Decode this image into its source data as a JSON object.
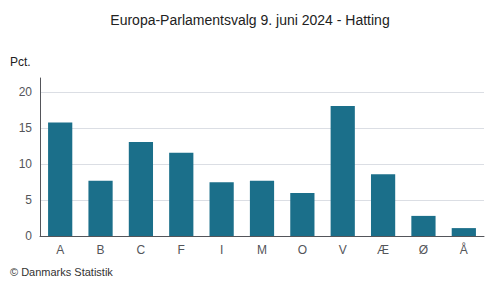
{
  "chart_data": {
    "type": "bar",
    "title": "Europa-Parlamentsvalg 9. juni 2024 - Hatting",
    "ylabel": "Pct.",
    "footer": "© Danmarks Statistik",
    "categories": [
      "A",
      "B",
      "C",
      "F",
      "I",
      "M",
      "O",
      "V",
      "Æ",
      "Ø",
      "Å"
    ],
    "values": [
      15.8,
      7.7,
      13.1,
      11.6,
      7.5,
      7.7,
      6.0,
      18.1,
      8.6,
      2.8,
      1.1
    ],
    "color": "#1b6f8a",
    "ylim": [
      0,
      22
    ],
    "yticks": [
      0,
      5,
      10,
      15,
      20
    ],
    "grid": true
  }
}
